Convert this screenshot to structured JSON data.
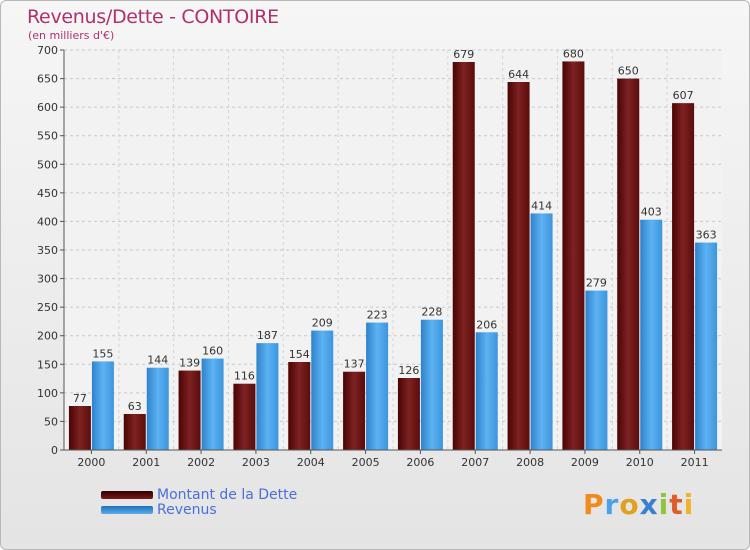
{
  "title": "Revenus/Dette - CONTOIRE",
  "subtitle": "(en milliers d'€)",
  "logo_text": "Proxiti",
  "colors": {
    "dette": "#6e1414",
    "revenus": "#4aa3e8",
    "title": "#b0306e",
    "legend_text": "#4a6fd8"
  },
  "chart_data": {
    "type": "bar",
    "title": "Revenus/Dette - CONTOIRE",
    "subtitle": "(en milliers d'€)",
    "categories": [
      "2000",
      "2001",
      "2002",
      "2003",
      "2004",
      "2005",
      "2006",
      "2007",
      "2008",
      "2009",
      "2010",
      "2011"
    ],
    "series": [
      {
        "name": "Montant de la Dette",
        "values": [
          77,
          63,
          139,
          116,
          154,
          137,
          126,
          679,
          644,
          680,
          650,
          607
        ]
      },
      {
        "name": "Revenus",
        "values": [
          155,
          144,
          160,
          187,
          209,
          223,
          228,
          206,
          414,
          279,
          403,
          363
        ]
      }
    ],
    "ylim": [
      0,
      700
    ],
    "yticks": [
      0,
      50,
      100,
      150,
      200,
      250,
      300,
      350,
      400,
      450,
      500,
      550,
      600,
      650,
      700
    ],
    "grid": true,
    "legend_position": "bottom-left"
  }
}
